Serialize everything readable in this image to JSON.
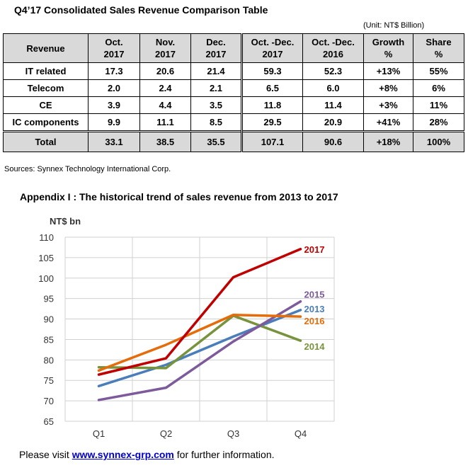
{
  "title": "Q4’17 Consolidated Sales Revenue Comparison Table",
  "unit": "(Unit:  NT$  Billion)",
  "table": {
    "headers": [
      [
        "Revenue"
      ],
      [
        "Oct.",
        "2017"
      ],
      [
        "Nov.",
        "2017"
      ],
      [
        "Dec.",
        "2017"
      ],
      [
        "Oct. -Dec.",
        "2017"
      ],
      [
        "Oct. -Dec.",
        "2016"
      ],
      [
        "Growth",
        "%"
      ],
      [
        "Share",
        "%"
      ]
    ],
    "rows": [
      [
        "IT related",
        "17.3",
        "20.6",
        "21.4",
        "59.3",
        "52.3",
        "+13%",
        "55%"
      ],
      [
        "Telecom",
        "2.0",
        "2.4",
        "2.1",
        "6.5",
        "6.0",
        "+8%",
        "6%"
      ],
      [
        "CE",
        "3.9",
        "4.4",
        "3.5",
        "11.8",
        "11.4",
        "+3%",
        "11%"
      ],
      [
        "IC components",
        "9.9",
        "11.1",
        "8.5",
        "29.5",
        "20.9",
        "+41%",
        "28%"
      ]
    ],
    "total": [
      "Total",
      "33.1",
      "38.5",
      "35.5",
      "107.1",
      "90.6",
      "+18%",
      "100%"
    ]
  },
  "sources": "Sources: Synnex Technology International Corp.",
  "appendix_title": "Appendix I :  The historical trend of sales revenue from 2013 to 2017",
  "chart_data": {
    "type": "line",
    "ylabel": "NT$ bn",
    "categories": [
      "Q1",
      "Q2",
      "Q3",
      "Q4"
    ],
    "ylim": [
      65,
      110
    ],
    "yticks": [
      65,
      70,
      75,
      80,
      85,
      90,
      95,
      100,
      105,
      110
    ],
    "grid": true,
    "series": [
      {
        "name": "2013",
        "color": "#4a7ebb",
        "values": [
          73.6,
          78.8,
          85.7,
          92.2
        ]
      },
      {
        "name": "2014",
        "color": "#77933c",
        "values": [
          78.2,
          78.0,
          90.8,
          84.7
        ]
      },
      {
        "name": "2015",
        "color": "#7d5a9c",
        "values": [
          70.2,
          73.2,
          84.5,
          94.3
        ]
      },
      {
        "name": "2016",
        "color": "#e46c0a",
        "values": [
          77.4,
          83.7,
          91.0,
          90.6
        ]
      },
      {
        "name": "2017",
        "color": "#c00000",
        "values": [
          76.4,
          80.4,
          100.2,
          107.1
        ]
      }
    ]
  },
  "footer": {
    "prefix": "Please visit ",
    "link_text": "www.synnex-grp.com",
    "suffix": " for further information."
  }
}
